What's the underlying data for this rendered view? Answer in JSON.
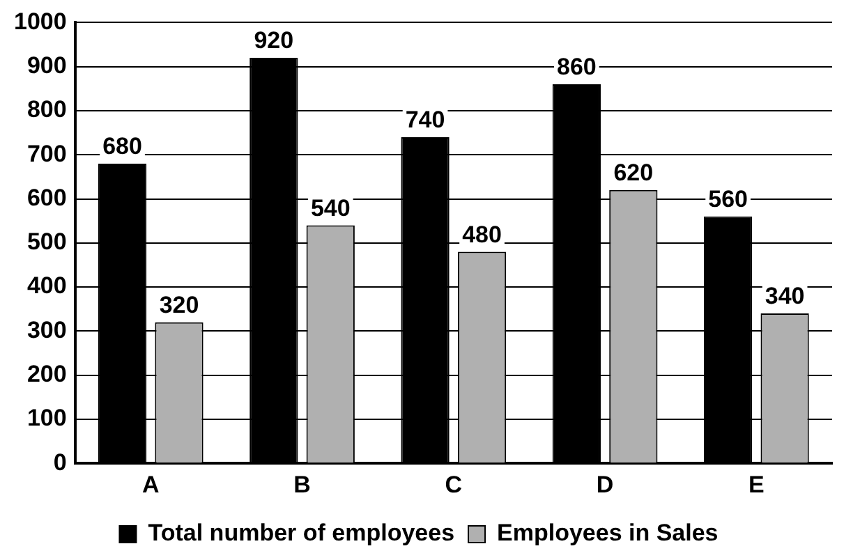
{
  "chart_data": {
    "type": "bar",
    "categories": [
      "A",
      "B",
      "C",
      "D",
      "E"
    ],
    "series": [
      {
        "name": "Total number of employees",
        "color": "#000000",
        "values": [
          680,
          920,
          740,
          860,
          560
        ]
      },
      {
        "name": "Employees in Sales",
        "color": "#b0b0b0",
        "values": [
          320,
          540,
          480,
          620,
          340
        ]
      }
    ],
    "ylim": [
      0,
      1000
    ],
    "yticks": [
      0,
      100,
      200,
      300,
      400,
      500,
      600,
      700,
      800,
      900,
      1000
    ],
    "grid": "y",
    "legend": "bottom",
    "data_labels": true
  }
}
